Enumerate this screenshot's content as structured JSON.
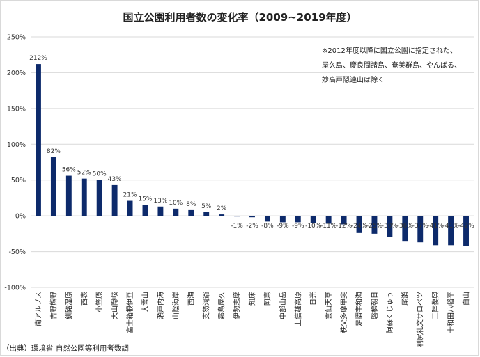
{
  "chart_data": {
    "type": "bar",
    "title": "国立公園利用者数の変化率（2009~2019年度）",
    "ylim": [
      -100,
      250
    ],
    "yticks": [
      -100,
      -50,
      0,
      50,
      100,
      150,
      200,
      250
    ],
    "ytick_labels": [
      "-100%",
      "-50%",
      "0%",
      "50%",
      "100%",
      "150%",
      "200%",
      "250%"
    ],
    "grid": true,
    "categories": [
      "南アルプス",
      "吉野熊野",
      "釧路湿原",
      "西表",
      "小笠原",
      "大山隠岐",
      "富士箱根伊豆",
      "大雪山",
      "瀬戸内海",
      "山陰海岸",
      "西海",
      "支笏洞爺",
      "霧島屋久",
      "伊勢志摩",
      "知床",
      "阿寒",
      "中部山岳",
      "上信越高原",
      "日光",
      "雲仙天草",
      "秩父多摩甲斐",
      "足摺宇和海",
      "磐梯朝日",
      "阿蘇くじゅう",
      "尾瀬",
      "利尻礼文サロベツ",
      "三陸復興",
      "十和田八幡平",
      "白山"
    ],
    "values": [
      212,
      82,
      56,
      52,
      50,
      43,
      21,
      15,
      13,
      10,
      8,
      5,
      2,
      -1,
      -2,
      -8,
      -9,
      -9,
      -10,
      -11,
      -12,
      -24,
      -25,
      -30,
      -36,
      -37,
      -41,
      -41,
      -42
    ],
    "data_labels": [
      "212%",
      "82%",
      "56%",
      "52%",
      "50%",
      "43%",
      "21%",
      "15%",
      "13%",
      "10%",
      "8%",
      "5%",
      "2%",
      "-1%",
      "-2%",
      "-8%",
      "-9%",
      "-9%",
      "-10%",
      "-11%",
      "-12%",
      "-24%",
      "-25%",
      "-30%",
      "-36%",
      "-37%",
      "-41%",
      "-41%",
      "-42%"
    ],
    "bar_color": "#0d2a6b",
    "grid_color": "#d9d9d9"
  },
  "note": [
    "※2012年度以降に国立公園に指定された、",
    "屋久島、慶良間諸島、奄美群島、やんばる、",
    "妙高戸隠連山は除く"
  ],
  "source": "（出典）環境省 自然公園等利用者数調"
}
